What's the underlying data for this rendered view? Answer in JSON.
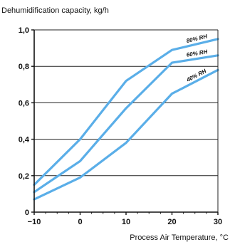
{
  "chart_data": {
    "type": "line",
    "title": "",
    "ylabel": "Dehumidification capacity, kg/h",
    "xlabel": "Process Air Temperature, °C",
    "xlim": [
      -10,
      30
    ],
    "ylim": [
      0,
      1.0
    ],
    "x_ticks": [
      -10,
      0,
      10,
      20,
      30
    ],
    "x_tick_labels": [
      "−10",
      "0",
      "10",
      "20",
      "30"
    ],
    "y_ticks": [
      0,
      0.2,
      0.4,
      0.6,
      0.8,
      1.0
    ],
    "y_tick_labels": [
      "0",
      "0,2",
      "0,4",
      "0,6",
      "0,8",
      "1,0"
    ],
    "grid": "horizontal",
    "series": [
      {
        "name": "80% RH",
        "color": "#5aaee8",
        "x": [
          -10,
          0,
          10,
          20,
          30
        ],
        "y": [
          0.15,
          0.4,
          0.72,
          0.89,
          0.95
        ]
      },
      {
        "name": "60% RH",
        "color": "#5aaee8",
        "x": [
          -10,
          0,
          10,
          20,
          30
        ],
        "y": [
          0.11,
          0.28,
          0.57,
          0.82,
          0.86
        ]
      },
      {
        "name": "40% RH",
        "color": "#5aaee8",
        "x": [
          -10,
          0,
          10,
          20,
          30
        ],
        "y": [
          0.07,
          0.19,
          0.38,
          0.65,
          0.78
        ]
      }
    ]
  }
}
